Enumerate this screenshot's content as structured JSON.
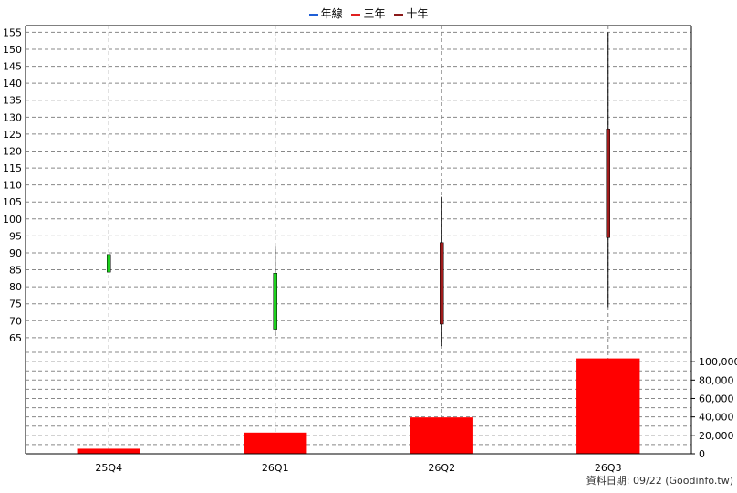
{
  "legend": [
    {
      "label": "年線",
      "color": "#1f5fd6"
    },
    {
      "label": "三年",
      "color": "#e02020"
    },
    {
      "label": "十年",
      "color": "#8b1a1a"
    }
  ],
  "footer": "資料日期: 09/22  (Goodinfo.tw)",
  "colors": {
    "up": "#9e1b1b",
    "down": "#1ed01e",
    "volume": "#ff0000",
    "grid": "#888888"
  },
  "chart_data": [
    {
      "type": "candlestick",
      "categories": [
        "25Q4",
        "26Q1",
        "26Q2",
        "26Q3"
      ],
      "ylim": [
        62,
        157
      ],
      "yticks": [
        65,
        70,
        75,
        80,
        85,
        90,
        95,
        100,
        105,
        110,
        115,
        120,
        125,
        130,
        135,
        140,
        145,
        150,
        155
      ],
      "candles": [
        {
          "open": 89.5,
          "high": 89.5,
          "low": 84.3,
          "close": 84.3
        },
        {
          "open": 84.0,
          "high": 92.0,
          "low": 65.5,
          "close": 67.5
        },
        {
          "open": 69.0,
          "high": 106.5,
          "low": 62.5,
          "close": 93.0
        },
        {
          "open": 94.5,
          "high": 155.0,
          "low": 74.0,
          "close": 126.5
        }
      ]
    },
    {
      "type": "bar",
      "categories": [
        "25Q4",
        "26Q1",
        "26Q2",
        "26Q3"
      ],
      "values": [
        5500,
        23000,
        39500,
        103500
      ],
      "ylim": [
        0,
        115000
      ],
      "yticks": [
        0,
        20000,
        40000,
        60000,
        80000,
        100000
      ],
      "ytick_labels": [
        "0",
        "20,000",
        "40,000",
        "60,000",
        "80,000",
        "100,000"
      ]
    }
  ]
}
